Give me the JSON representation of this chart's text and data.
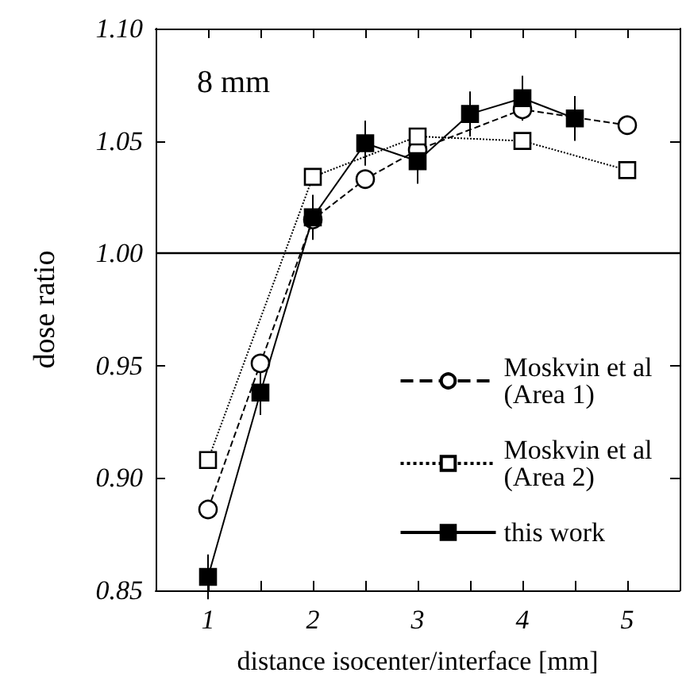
{
  "chart_data": {
    "type": "line",
    "xlabel": "distance isocenter/interface [mm]",
    "ylabel": "dose ratio",
    "annotations": [
      "8 mm"
    ],
    "xlim": [
      0.5,
      5.5
    ],
    "xticks": [
      1,
      {
        "value": 1.5,
        "label": null
      },
      2,
      {
        "value": 2.5,
        "label": null
      },
      3,
      {
        "value": 3.5,
        "label": null
      },
      4,
      {
        "value": 4.5,
        "label": null
      },
      5
    ],
    "ylim": [
      0.85,
      1.1
    ],
    "yticks": [
      0.85,
      {
        "value": 0.9,
        "label": "0.90"
      },
      0.95,
      {
        "value": 1.0,
        "label": "1.00"
      },
      1.05,
      {
        "value": 1.1,
        "label": "1.10"
      }
    ],
    "ref_lines": [
      {
        "axis": "y",
        "value": 1.0,
        "color": "#000000",
        "line_style": "solid"
      }
    ],
    "grid": false,
    "legend": "bottom right",
    "series": [
      {
        "name": "Moskvin et al (Area 1)",
        "color": "#000000",
        "marker": "circle",
        "line_style": "dashed",
        "x": [
          1,
          1.5,
          2,
          2.5,
          3,
          4,
          5
        ],
        "values": [
          0.886,
          0.951,
          1.015,
          1.033,
          1.046,
          1.064,
          1.057
        ]
      },
      {
        "name": "Moskvin et al (Area 2)",
        "color": "#000000",
        "marker": "square",
        "line_style": "dotted",
        "x": [
          1,
          2,
          3,
          4,
          5
        ],
        "values": [
          0.908,
          1.034,
          1.052,
          1.05,
          1.037
        ]
      },
      {
        "name": "this work",
        "color": "#000000",
        "marker": "square",
        "line_style": "solid",
        "x": [
          1,
          1.5,
          2,
          2.5,
          3,
          3.5,
          4,
          4.5
        ],
        "values": [
          0.856,
          0.938,
          1.016,
          1.049,
          1.041,
          1.062,
          1.069,
          1.06
        ],
        "errors": [
          0.01,
          0.01,
          0.01,
          0.01,
          0.01,
          0.01,
          0.01,
          0.01
        ]
      }
    ]
  }
}
